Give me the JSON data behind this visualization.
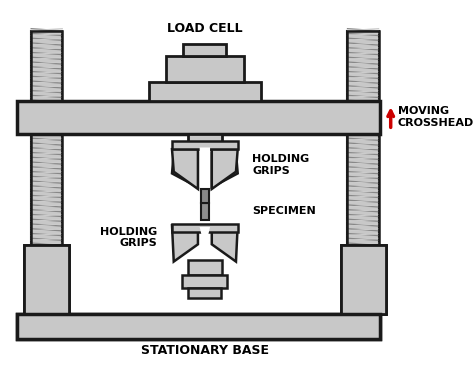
{
  "bg_color": "#ffffff",
  "gray": "#c8c8c8",
  "gray_dark": "#b0b0b0",
  "outline": "#1a1a1a",
  "arrow_color": "#cc0000",
  "text_color": "#000000",
  "figsize": [
    4.74,
    3.79
  ],
  "dpi": 100,
  "labels": {
    "load_cell": "LOAD CELL",
    "holding_grips_top": "HOLDING\nGRIPS",
    "specimen": "SPECIMEN",
    "holding_grips_bottom": "HOLDING\nGRIPS",
    "stationary_base": "STATIONARY BASE",
    "moving_crosshead": "MOVING\nCROSSHEAD"
  }
}
